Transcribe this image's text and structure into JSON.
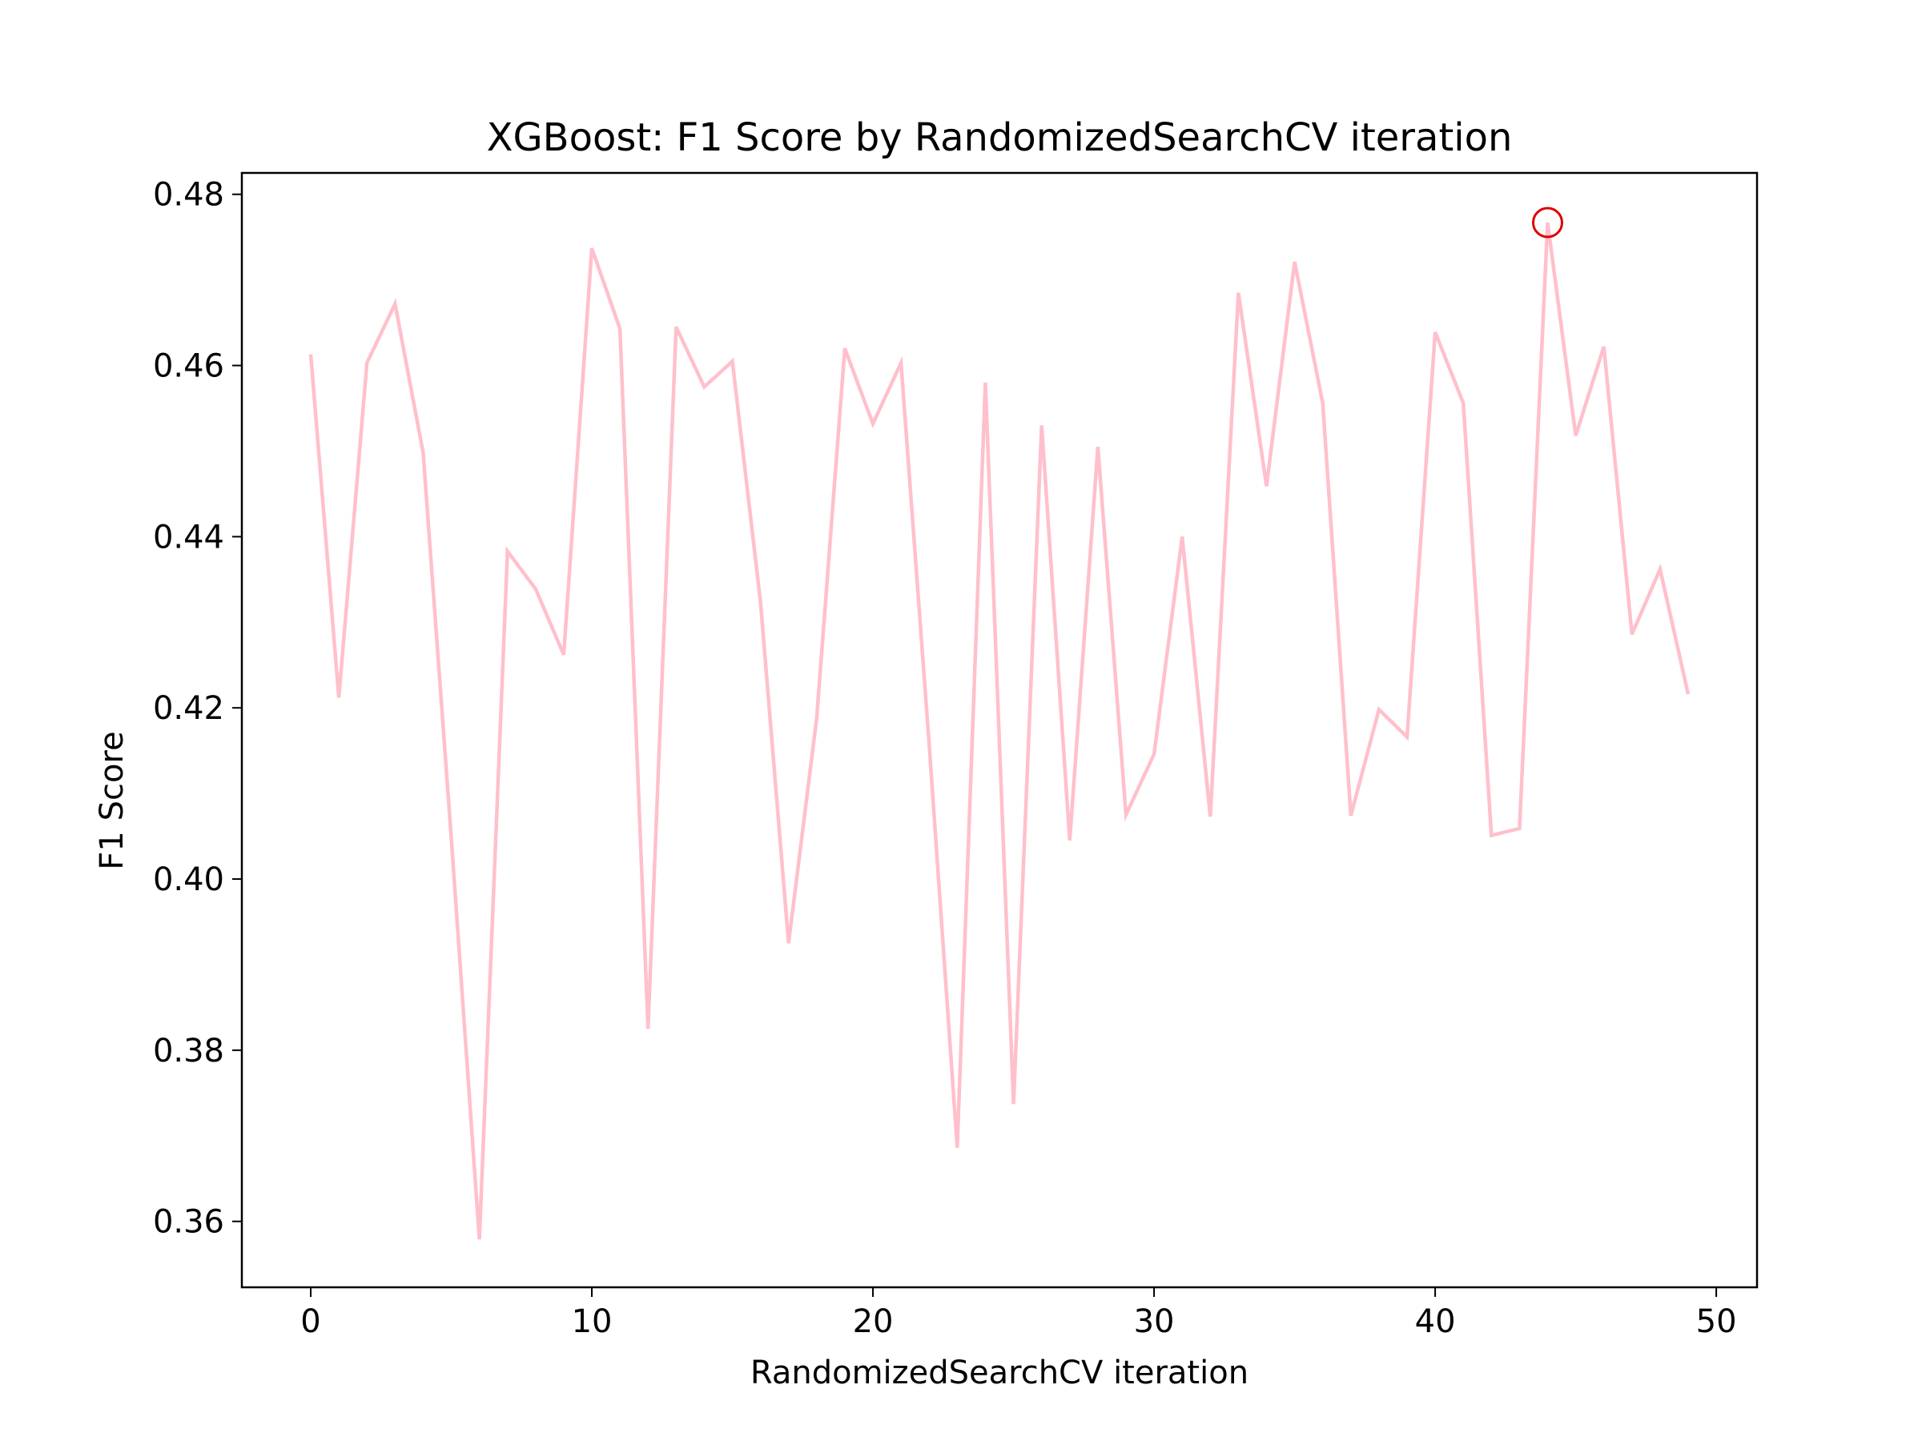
{
  "chart_data": {
    "type": "line",
    "title": "XGBoost: F1 Score by RandomizedSearchCV iteration",
    "xlabel": "RandomizedSearchCV iteration",
    "ylabel": "F1 Score",
    "xlim": [
      -2.45,
      51.45
    ],
    "ylim": [
      0.3523,
      0.4825
    ],
    "xticks": [
      0,
      10,
      20,
      30,
      40,
      50
    ],
    "xtick_labels": [
      "0",
      "10",
      "20",
      "30",
      "40",
      "50"
    ],
    "yticks": [
      0.36,
      0.38,
      0.4,
      0.42,
      0.44,
      0.46,
      0.48
    ],
    "ytick_labels": [
      "0.36",
      "0.38",
      "0.40",
      "0.42",
      "0.44",
      "0.46",
      "0.48"
    ],
    "grid": false,
    "series": [
      {
        "color": "#ffc0cb",
        "x": [
          0,
          1,
          2,
          3,
          4,
          5,
          6,
          7,
          8,
          9,
          10,
          11,
          12,
          13,
          14,
          15,
          16,
          17,
          18,
          19,
          20,
          21,
          22,
          23,
          24,
          25,
          26,
          27,
          28,
          29,
          30,
          31,
          32,
          33,
          34,
          35,
          36,
          37,
          38,
          39,
          40,
          41,
          42,
          43,
          44,
          45,
          46,
          47,
          48,
          49
        ],
        "values": [
          0.4613,
          0.4212,
          0.4603,
          0.4672,
          0.4498,
          0.4048,
          0.3579,
          0.4383,
          0.4339,
          0.4262,
          0.4737,
          0.4643,
          0.3825,
          0.4645,
          0.4575,
          0.4605,
          0.4324,
          0.3925,
          0.4188,
          0.462,
          0.4532,
          0.4603,
          0.4158,
          0.3686,
          0.458,
          0.3737,
          0.453,
          0.4045,
          0.4505,
          0.4075,
          0.4146,
          0.44,
          0.4073,
          0.4685,
          0.4459,
          0.4721,
          0.4556,
          0.4074,
          0.4198,
          0.4166,
          0.4639,
          0.4556,
          0.4051,
          0.4059,
          0.4767,
          0.4518,
          0.4622,
          0.4286,
          0.4362,
          0.4216
        ]
      }
    ],
    "highlight": {
      "x": 44,
      "y": 0.4767,
      "marker": "open-circle",
      "color": "#e00000"
    }
  }
}
